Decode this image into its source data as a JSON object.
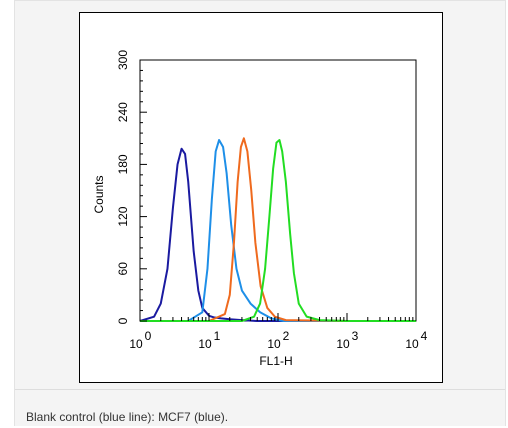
{
  "caption": "Blank control (blue line): MCF7 (blue).",
  "chart_data": {
    "type": "line",
    "xlabel": "FL1-H",
    "ylabel": "Counts",
    "x_scale": "log",
    "xlim": [
      1,
      10000
    ],
    "ylim": [
      0,
      300
    ],
    "x_ticks": [
      {
        "value": 1,
        "base": "10",
        "exp": "0"
      },
      {
        "value": 10,
        "base": "10",
        "exp": "1"
      },
      {
        "value": 100,
        "base": "10",
        "exp": "2"
      },
      {
        "value": 1000,
        "base": "10",
        "exp": "3"
      },
      {
        "value": 10000,
        "base": "10",
        "exp": "4"
      }
    ],
    "y_ticks": [
      "0",
      "60",
      "120",
      "180",
      "240",
      "300"
    ],
    "grid": false,
    "series": [
      {
        "color": "#1a1aa0",
        "x": [
          1.0,
          1.6,
          2.0,
          2.5,
          3.0,
          3.5,
          4.0,
          4.5,
          5.0,
          6.0,
          7.0,
          8.0,
          10.0,
          12.0,
          15.0,
          20.0,
          30.0,
          50.0,
          100.0,
          1000.0,
          10000.0
        ],
        "y": [
          0,
          5,
          20,
          60,
          130,
          180,
          198,
          192,
          160,
          80,
          35,
          15,
          6,
          4,
          3,
          2,
          1,
          0,
          0,
          0,
          0
        ]
      },
      {
        "color": "#1e8fe8",
        "x": [
          1.0,
          5.0,
          8.0,
          9.5,
          11.0,
          12.5,
          14.0,
          16.0,
          18.0,
          21.0,
          25.0,
          30.0,
          40.0,
          55.0,
          80.0,
          120.0,
          1000.0,
          10000.0
        ],
        "y": [
          0,
          0,
          10,
          60,
          140,
          195,
          208,
          200,
          170,
          110,
          60,
          35,
          20,
          10,
          3,
          0,
          0,
          0
        ]
      },
      {
        "color": "#ef6a1e",
        "x": [
          1.0,
          10.0,
          17.0,
          20.0,
          23.0,
          26.0,
          29.0,
          32.0,
          36.0,
          41.0,
          47.0,
          56.0,
          70.0,
          90.0,
          130.0,
          1000.0,
          10000.0
        ],
        "y": [
          0,
          0,
          8,
          30,
          90,
          160,
          200,
          210,
          195,
          150,
          90,
          40,
          15,
          5,
          1,
          0,
          0
        ]
      },
      {
        "color": "#22dd22",
        "x": [
          1.0,
          30.0,
          45.0,
          55.0,
          65.0,
          75.0,
          85.0,
          95.0,
          105.0,
          115.0,
          130.0,
          150.0,
          170.0,
          200.0,
          260.0,
          400.0,
          1000.0,
          10000.0
        ],
        "y": [
          0,
          0,
          5,
          20,
          60,
          120,
          175,
          205,
          208,
          195,
          160,
          100,
          55,
          20,
          5,
          1,
          0,
          0
        ]
      }
    ]
  }
}
